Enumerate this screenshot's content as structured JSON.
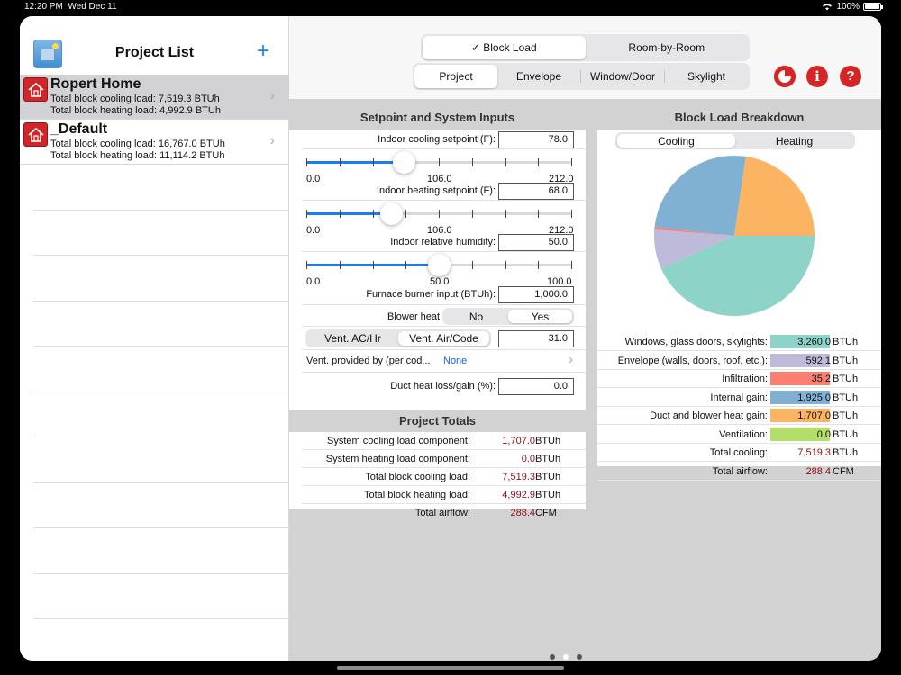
{
  "status": {
    "time": "12:20 PM",
    "date": "Wed Dec 11",
    "battery": "100%"
  },
  "sidebar": {
    "title": "Project List",
    "add_icon": "plus-icon",
    "projects": [
      {
        "name": "Ropert Home",
        "cooling": "Total block cooling load: 7,519.3 BTUh",
        "heating": "Total block heating load: 4,992.9 BTUh",
        "selected": true
      },
      {
        "name": "_Default",
        "cooling": "Total block cooling load: 16,767.0 BTUh",
        "heating": "Total block heating load: 11,114.2 BTUh",
        "selected": false
      }
    ]
  },
  "header": {
    "mode_tabs": [
      "✓ Block Load",
      "Room-by-Room"
    ],
    "section_tabs": [
      "Project",
      "Envelope",
      "Window/Door",
      "Skylight"
    ],
    "buttons": [
      "pie-chart-icon",
      "info-icon",
      "help-icon"
    ],
    "info_glyph": "i",
    "help_glyph": "?"
  },
  "inputs": {
    "title": "Setpoint and System Inputs",
    "cooling_label": "Indoor cooling setpoint (F):",
    "cooling_value": "78.0",
    "cooling_slider": {
      "min": "0.0",
      "mid": "106.0",
      "max": "212.0",
      "fraction": 0.368
    },
    "heating_label": "Indoor heating setpoint (F):",
    "heating_value": "68.0",
    "heating_slider": {
      "min": "0.0",
      "mid": "106.0",
      "max": "212.0",
      "fraction": 0.321
    },
    "humidity_label": "Indoor relative humidity:",
    "humidity_value": "50.0",
    "humidity_slider": {
      "min": "0.0",
      "mid": "50.0",
      "max": "100.0",
      "fraction": 0.5
    },
    "furnace_label": "Furnace burner input (BTUh):",
    "furnace_value": "1,000.0",
    "blower_label": "Blower heat gain:",
    "blower_options": [
      "No",
      "Yes"
    ],
    "vent_options": [
      "Vent. AC/Hr",
      "Vent. Air/Code"
    ],
    "vent_value": "31.0",
    "vent_provided_label": "Vent. provided by (per cod...",
    "vent_provided_value": "None",
    "duct_label": "Duct heat loss/gain (%):",
    "duct_value": "0.0"
  },
  "totals": {
    "title": "Project Totals",
    "rows": [
      {
        "label": "System cooling load component:",
        "value": "1,707.0",
        "unit": "BTUh"
      },
      {
        "label": "System heating load component:",
        "value": "0.0",
        "unit": "BTUh"
      },
      {
        "label": "Total block cooling load:",
        "value": "7,519.3",
        "unit": "BTUh"
      },
      {
        "label": "Total block heating load:",
        "value": "4,992.9",
        "unit": "BTUh"
      },
      {
        "label": "Total airflow:",
        "value": "288.4",
        "unit": "CFM"
      }
    ]
  },
  "breakdown": {
    "title": "Block Load Breakdown",
    "tabs": [
      "Cooling",
      "Heating"
    ],
    "rows": [
      {
        "label": "Windows, glass doors, skylights:",
        "value": "3,260.0",
        "unit": "BTUh",
        "color": "#8dd3c7"
      },
      {
        "label": "Envelope (walls, doors, roof, etc.):",
        "value": "592.1",
        "unit": "BTUh",
        "color": "#bebada"
      },
      {
        "label": "Infiltration:",
        "value": "35.2",
        "unit": "BTUh",
        "color": "#fb8072"
      },
      {
        "label": "Internal gain:",
        "value": "1,925.0",
        "unit": "BTUh",
        "color": "#80b1d3"
      },
      {
        "label": "Duct and blower heat gain:",
        "value": "1,707.0",
        "unit": "BTUh",
        "color": "#fdb462"
      },
      {
        "label": "Ventilation:",
        "value": "0.0",
        "unit": "BTUh",
        "color": "#b3de69"
      },
      {
        "label": "Total cooling:",
        "value": "7,519.3",
        "unit": "BTUh",
        "color": ""
      },
      {
        "label": "Total airflow:",
        "value": "288.4",
        "unit": "CFM",
        "color": ""
      }
    ]
  },
  "chart_data": {
    "type": "pie",
    "categories": [
      "Windows, glass doors, skylights",
      "Envelope (walls, doors, roof, etc.)",
      "Infiltration",
      "Internal gain",
      "Duct and blower heat gain",
      "Ventilation"
    ],
    "values": [
      3260.0,
      592.1,
      35.2,
      1925.0,
      1707.0,
      0.0
    ],
    "colors": [
      "#8dd3c7",
      "#bebada",
      "#fb8072",
      "#80b1d3",
      "#fdb462",
      "#b3de69"
    ]
  }
}
